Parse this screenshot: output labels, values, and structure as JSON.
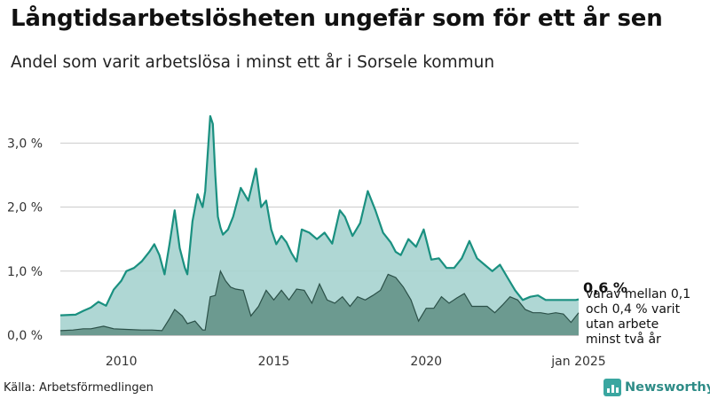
{
  "title": "Långtidsarbetslösheten ungefär som för ett år sen",
  "subtitle": "Andel som varit arbetslösa i minst ett år i Sorsele kommun",
  "source": "Källa: Arbetsförmedlingen",
  "brand": {
    "name": "Newsworthy",
    "logo_icon": "bar-chart-icon"
  },
  "colors": {
    "total_line": "#1a9080",
    "total_fill": "#a6d3cf",
    "longterm_fill": "#6c9a90",
    "longterm_line": "#2b5048",
    "gridline": "#cccccc",
    "brand": "#3aa6a0"
  },
  "annotation": {
    "value": "0,6 %",
    "lines": [
      "varav mellan 0,1",
      "och 0,4 % varit",
      "utan arbete",
      "minst två år"
    ]
  },
  "chart_data": {
    "type": "area",
    "x_ticks": [
      "2010",
      "2015",
      "2020",
      "jan 2025"
    ],
    "y_ticks": [
      "0,0 %",
      "1,0 %",
      "2,0 %",
      "3,0 %"
    ],
    "ylim": [
      0,
      3.6
    ],
    "xlim": [
      "2008-01",
      "2025-01"
    ],
    "grid": true,
    "series": [
      {
        "x": [
          "2008-01",
          "2008-07",
          "2008-10",
          "2009-01",
          "2009-04",
          "2009-07",
          "2009-10",
          "2010-01",
          "2010-03",
          "2010-06",
          "2010-09",
          "2010-12",
          "2011-02",
          "2011-04",
          "2011-06",
          "2011-08",
          "2011-10",
          "2011-12",
          "2012-02",
          "2012-03",
          "2012-05",
          "2012-07",
          "2012-09",
          "2012-10",
          "2012-12",
          "2013-01",
          "2013-02",
          "2013-03",
          "2013-04",
          "2013-05",
          "2013-07",
          "2013-09",
          "2013-12",
          "2014-03",
          "2014-06",
          "2014-08",
          "2014-10",
          "2014-12",
          "2015-02",
          "2015-04",
          "2015-06",
          "2015-08",
          "2015-10",
          "2015-12",
          "2016-03",
          "2016-06",
          "2016-09",
          "2016-12",
          "2017-03",
          "2017-05",
          "2017-08",
          "2017-11",
          "2018-02",
          "2018-05",
          "2018-08",
          "2018-11",
          "2019-01",
          "2019-03",
          "2019-06",
          "2019-09",
          "2019-12",
          "2020-03",
          "2020-06",
          "2020-09",
          "2020-12",
          "2021-03",
          "2021-06",
          "2021-09",
          "2021-12",
          "2022-03",
          "2022-06",
          "2022-09",
          "2022-12",
          "2023-03",
          "2023-06",
          "2023-09",
          "2023-12",
          "2024-03",
          "2024-06",
          "2024-09",
          "2024-12",
          "2025-01"
        ],
        "values": [
          0.31,
          0.32,
          0.38,
          0.43,
          0.52,
          0.46,
          0.71,
          0.85,
          1.0,
          1.05,
          1.15,
          1.3,
          1.42,
          1.25,
          0.95,
          1.43,
          1.95,
          1.36,
          1.05,
          0.95,
          1.78,
          2.2,
          2.0,
          2.25,
          3.42,
          3.3,
          2.5,
          1.85,
          1.68,
          1.57,
          1.65,
          1.85,
          2.3,
          2.1,
          2.6,
          2.0,
          2.1,
          1.65,
          1.42,
          1.55,
          1.45,
          1.28,
          1.15,
          1.65,
          1.6,
          1.5,
          1.6,
          1.43,
          1.95,
          1.85,
          1.55,
          1.75,
          2.25,
          1.95,
          1.6,
          1.45,
          1.3,
          1.25,
          1.5,
          1.38,
          1.65,
          1.18,
          1.2,
          1.05,
          1.05,
          1.2,
          1.47,
          1.2,
          1.1,
          1.0,
          1.1,
          0.9,
          0.7,
          0.55,
          0.6,
          0.62,
          0.55,
          0.55,
          0.55,
          0.55,
          0.55,
          0.56
        ]
      },
      {
        "x": [
          "2008-01",
          "2008-06",
          "2008-10",
          "2009-01",
          "2009-06",
          "2009-10",
          "2010-03",
          "2010-09",
          "2011-01",
          "2011-05",
          "2011-08",
          "2011-10",
          "2012-01",
          "2012-03",
          "2012-06",
          "2012-09",
          "2012-10",
          "2012-12",
          "2013-02",
          "2013-04",
          "2013-06",
          "2013-08",
          "2013-10",
          "2014-01",
          "2014-04",
          "2014-07",
          "2014-10",
          "2015-01",
          "2015-04",
          "2015-07",
          "2015-10",
          "2016-01",
          "2016-04",
          "2016-07",
          "2016-10",
          "2017-01",
          "2017-04",
          "2017-07",
          "2017-10",
          "2018-01",
          "2018-04",
          "2018-07",
          "2018-10",
          "2019-01",
          "2019-04",
          "2019-07",
          "2019-10",
          "2020-01",
          "2020-04",
          "2020-07",
          "2020-10",
          "2021-01",
          "2021-04",
          "2021-07",
          "2021-10",
          "2022-01",
          "2022-04",
          "2022-07",
          "2022-10",
          "2023-01",
          "2023-04",
          "2023-07",
          "2023-10",
          "2024-01",
          "2024-04",
          "2024-07",
          "2024-10",
          "2025-01"
        ],
        "values": [
          0.07,
          0.08,
          0.1,
          0.1,
          0.14,
          0.1,
          0.09,
          0.08,
          0.08,
          0.07,
          0.26,
          0.4,
          0.3,
          0.18,
          0.22,
          0.08,
          0.08,
          0.6,
          0.62,
          1.0,
          0.85,
          0.75,
          0.72,
          0.7,
          0.3,
          0.45,
          0.7,
          0.55,
          0.7,
          0.55,
          0.72,
          0.7,
          0.5,
          0.8,
          0.55,
          0.5,
          0.6,
          0.45,
          0.6,
          0.55,
          0.62,
          0.7,
          0.95,
          0.9,
          0.75,
          0.55,
          0.22,
          0.42,
          0.42,
          0.6,
          0.5,
          0.58,
          0.65,
          0.45,
          0.45,
          0.45,
          0.35,
          0.47,
          0.6,
          0.55,
          0.4,
          0.35,
          0.35,
          0.33,
          0.35,
          0.33,
          0.2,
          0.35
        ]
      }
    ]
  }
}
